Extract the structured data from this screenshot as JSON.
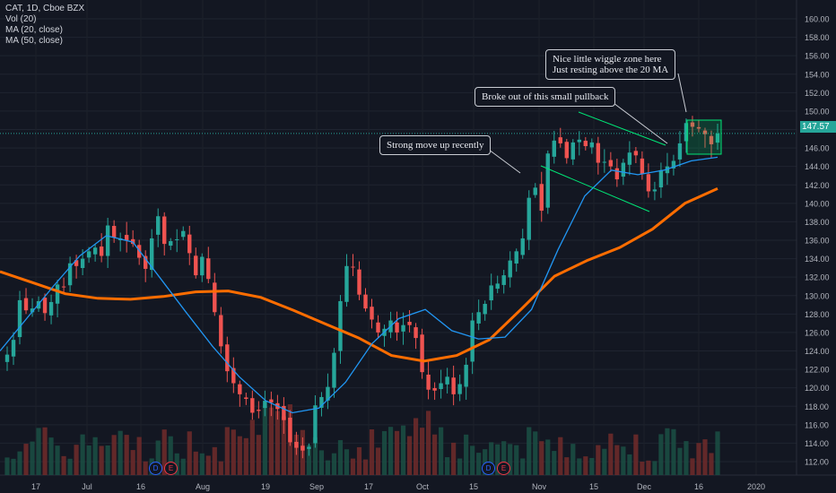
{
  "legend": {
    "symbol": "CAT, 1D, Cboe BZX",
    "vol": "Vol (20)",
    "ma20": "MA (20, close)",
    "ma50": "MA (50, close)"
  },
  "colors": {
    "background": "#131722",
    "up": "#26a69a",
    "down": "#ef5350",
    "ma20": "#2196f3",
    "ma50": "#ff6d00",
    "trendline": "#00e676",
    "current_price": "#26a69a"
  },
  "current_price_label": "147.57",
  "annotations": {
    "strong_move": "Strong move up recently",
    "broke_out": "Broke out of this small pullback",
    "wiggle_line1": "Nice little wiggle zone here",
    "wiggle_line2": "Just resting above the 20 MA"
  },
  "events": {
    "d1": "D",
    "e1": "E",
    "d2": "D",
    "e2": "E"
  },
  "chart_data": {
    "type": "candlestick",
    "title": "CAT, 1D, Cboe BZX",
    "y_ticks": [
      112,
      114,
      116,
      118,
      120,
      122,
      124,
      126,
      128,
      130,
      132,
      134,
      136,
      138,
      140,
      142,
      144,
      146,
      148,
      150,
      152,
      154,
      156,
      158,
      160
    ],
    "y_tick_labels": [
      "112.00",
      "114.00",
      "116.00",
      "118.00",
      "120.00",
      "122.00",
      "124.00",
      "126.00",
      "128.00",
      "130.00",
      "132.00",
      "134.00",
      "136.00",
      "138.00",
      "140.00",
      "142.00",
      "144.00",
      "146.00",
      "148.00",
      "150.00",
      "152.00",
      "154.00",
      "156.00",
      "158.00",
      "160.00"
    ],
    "ylim": [
      110.5,
      161.5
    ],
    "x_tick_labels": [
      "17",
      "Jul",
      "16",
      "Aug",
      "19",
      "Sep",
      "17",
      "Oct",
      "15",
      "Nov",
      "15",
      "Dec",
      "16",
      "2020"
    ],
    "current_price": 147.57,
    "ohlc_close": [
      123.6,
      125.2,
      129.5,
      128.4,
      128.6,
      129.4,
      128.1,
      129.3,
      131.2,
      130.9,
      133.5,
      133.2,
      134.0,
      134.8,
      135.2,
      134.3,
      137.6,
      136.3,
      136.2,
      136.0,
      135.6,
      134.1,
      132.9,
      136.2,
      138.6,
      135.6,
      135.9,
      136.1,
      137.0,
      134.6,
      132.2,
      134.2,
      131.8,
      128.2,
      124.5,
      121.8,
      120.5,
      119.3,
      118.8,
      117.3,
      117.5,
      118.6,
      118.4,
      117.7,
      116.5,
      114.1,
      113.5,
      113.2,
      113.6,
      118.1,
      119.0,
      120.1,
      123.8,
      129.4,
      133.2,
      133.1,
      130.1,
      128.6,
      127.4,
      126.0,
      126.4,
      127.3,
      126.0,
      126.8,
      126.8,
      125.4,
      121.7,
      119.8,
      119.7,
      120.5,
      121.2,
      119.3,
      120.4,
      122.5,
      127.3,
      128.2,
      129.1,
      131.1,
      131.3,
      132.2,
      133.8,
      134.8,
      136.2,
      140.6,
      141.7,
      139.2,
      145.4,
      146.8,
      146.5,
      144.9,
      146.6,
      146.9,
      146.2,
      146.6,
      144.4,
      144.5,
      144.0,
      142.6,
      144.4,
      145.5,
      145.2,
      143.2,
      141.3,
      141.5,
      143.6,
      144.0,
      144.6,
      146.5,
      148.7,
      148.3,
      148.1,
      147.5,
      146.4,
      147.57
    ],
    "ma20_approx": [
      124.0,
      127.5,
      131.0,
      134.3,
      136.5,
      135.8,
      132.0,
      128.2,
      124.5,
      121.2,
      118.6,
      117.3,
      117.8,
      120.6,
      124.8,
      127.5,
      128.5,
      126.2,
      125.3,
      125.5,
      128.5,
      135.0,
      140.8,
      143.6,
      143.1,
      143.6,
      144.6,
      145.0
    ],
    "ma50_approx": [
      132.6,
      131.4,
      130.2,
      129.7,
      129.6,
      129.9,
      130.4,
      130.5,
      129.8,
      128.4,
      126.9,
      125.4,
      123.5,
      122.9,
      123.5,
      125.2,
      128.6,
      132.1,
      133.8,
      135.2,
      137.2,
      140.0,
      141.6
    ],
    "volume": "relative bars, not labeled"
  }
}
